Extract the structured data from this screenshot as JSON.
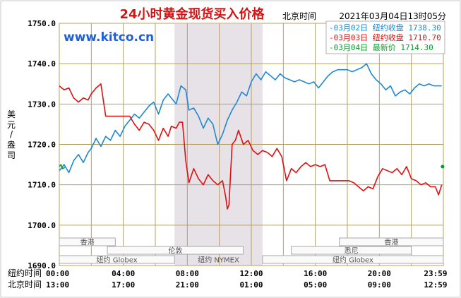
{
  "chart_data": {
    "type": "line",
    "title": "24小时黄金现货买入价格",
    "watermark": "www.kitco.cn",
    "timestamp": "2021年03月04日13时05分",
    "timestamp_prefix": "北京时间",
    "ylabel": "美元/盎司",
    "ylim": [
      1690,
      1750
    ],
    "y_ticks": [
      "1750.0",
      "1740.0",
      "1730.0",
      "1720.0",
      "1710.0",
      "1700.0",
      "1690.0"
    ],
    "x_range_hours": [
      0,
      24
    ],
    "shaded_session": {
      "label": "纽约 NYMEX",
      "start_hour": 7.2,
      "end_hour": 12.7
    },
    "x_axis_rows": [
      {
        "label": "纽约时间",
        "ticks": [
          "00:00",
          "04:00",
          "08:00",
          "12:00",
          "16:00",
          "20:00",
          "23:59"
        ]
      },
      {
        "label": "北京时间",
        "ticks": [
          "13:00",
          "17:00",
          "21:00",
          "01:00",
          "05:00",
          "09:00",
          "12:59"
        ]
      }
    ],
    "market_sessions": [
      {
        "label": "香港",
        "start_hour": 0,
        "end_hour": 3.5,
        "row": 0
      },
      {
        "label": "伦敦",
        "start_hour": 3.0,
        "end_hour": 11.5,
        "row": 1
      },
      {
        "label": "纽约 Globex",
        "start_hour": 0,
        "end_hour": 7.2,
        "row": 2
      },
      {
        "label": "纽约 Globex",
        "start_hour": 12.7,
        "end_hour": 24,
        "row": 2
      },
      {
        "label": "香港",
        "start_hour": 17.5,
        "end_hour": 24,
        "row": 0
      },
      {
        "label": "悉尼",
        "start_hour": 14.5,
        "end_hour": 22,
        "row": 1
      }
    ],
    "legend": [
      {
        "name": "03月02日",
        "desc": "纽约收盘",
        "value": "1738.30",
        "color": "#1e88d2"
      },
      {
        "name": "03月03日",
        "desc": "纽约收盘",
        "value": "1710.70",
        "color": "#e01010"
      },
      {
        "name": "03月04日",
        "desc": "最新价",
        "value": "1714.30",
        "color": "#0a9a2a"
      }
    ],
    "series": [
      {
        "name": "03月02日",
        "color": "#1e88d2",
        "x": [
          0,
          0.3,
          0.6,
          0.9,
          1.2,
          1.5,
          1.8,
          2.0,
          2.3,
          2.6,
          2.9,
          3.2,
          3.5,
          3.8,
          4.1,
          4.4,
          4.7,
          5.0,
          5.3,
          5.6,
          5.9,
          6.2,
          6.5,
          6.8,
          7.0,
          7.3,
          7.6,
          7.9,
          8.1,
          8.4,
          8.7,
          9.0,
          9.3,
          9.6,
          9.9,
          10.2,
          10.5,
          10.8,
          11.1,
          11.4,
          11.7,
          12.0,
          12.3,
          12.6,
          12.9,
          13.2,
          13.5,
          13.8,
          14.1,
          14.4,
          14.7,
          15.0,
          15.3,
          15.6,
          15.9,
          16.2,
          16.5,
          16.8,
          17.1,
          17.4,
          17.7,
          18.0,
          18.3,
          18.6,
          18.9,
          19.2,
          19.5,
          19.8,
          20.1,
          20.4,
          20.7,
          21.0,
          21.3,
          21.6,
          21.9,
          22.2,
          22.5,
          22.8,
          23.1,
          23.4,
          23.7,
          23.9
        ],
        "values": [
          1713.5,
          1715.0,
          1713.0,
          1716.0,
          1717.5,
          1715.5,
          1718.0,
          1719.0,
          1721.5,
          1719.5,
          1722.0,
          1721.0,
          1723.5,
          1722.0,
          1724.5,
          1726.0,
          1727.5,
          1726.5,
          1728.0,
          1729.5,
          1730.5,
          1727.5,
          1731.0,
          1732.5,
          1731.5,
          1730.0,
          1734.5,
          1733.5,
          1728.5,
          1729.0,
          1727.0,
          1724.0,
          1726.5,
          1725.0,
          1720.0,
          1722.5,
          1726.0,
          1728.5,
          1730.5,
          1733.0,
          1732.0,
          1735.5,
          1737.5,
          1736.0,
          1738.0,
          1737.0,
          1736.0,
          1737.5,
          1736.5,
          1736.0,
          1735.5,
          1736.0,
          1735.5,
          1735.0,
          1735.5,
          1734.0,
          1735.5,
          1737.0,
          1738.0,
          1738.5,
          1738.5,
          1738.5,
          1738.0,
          1738.5,
          1739.0,
          1740.0,
          1737.5,
          1736.0,
          1735.0,
          1733.5,
          1734.5,
          1732.0,
          1733.0,
          1733.5,
          1732.5,
          1734.0,
          1735.0,
          1734.5,
          1735.0,
          1734.5,
          1734.5,
          1734.5
        ]
      },
      {
        "name": "03月03日",
        "color": "#e01010",
        "x": [
          0,
          0.3,
          0.6,
          0.9,
          1.2,
          1.5,
          1.8,
          2.0,
          2.3,
          2.6,
          2.9,
          3.2,
          3.5,
          3.8,
          4.1,
          4.4,
          4.7,
          5.0,
          5.3,
          5.6,
          5.9,
          6.2,
          6.5,
          6.8,
          7.0,
          7.3,
          7.5,
          7.7,
          7.9,
          8.1,
          8.4,
          8.7,
          9.0,
          9.3,
          9.6,
          9.9,
          10.2,
          10.4,
          10.5,
          10.6,
          10.8,
          11.0,
          11.2,
          11.5,
          11.8,
          12.1,
          12.4,
          12.7,
          13.0,
          13.3,
          13.6,
          13.9,
          14.2,
          14.5,
          14.8,
          15.1,
          15.4,
          15.7,
          16.0,
          16.3,
          16.6,
          16.9,
          17.2,
          17.5,
          17.8,
          18.1,
          18.4,
          18.7,
          19.0,
          19.3,
          19.6,
          19.9,
          20.2,
          20.5,
          20.8,
          21.1,
          21.4,
          21.7,
          22.0,
          22.3,
          22.6,
          22.9,
          23.2,
          23.5,
          23.7,
          23.9
        ],
        "values": [
          1734.5,
          1733.5,
          1734.0,
          1731.5,
          1730.5,
          1731.5,
          1731.0,
          1732.5,
          1734.0,
          1735.0,
          1727.0,
          1727.0,
          1727.0,
          1727.0,
          1727.0,
          1727.0,
          1725.0,
          1723.5,
          1725.5,
          1725.0,
          1723.5,
          1721.0,
          1724.0,
          1722.0,
          1724.5,
          1724.0,
          1725.5,
          1725.5,
          1716.0,
          1710.5,
          1714.0,
          1711.5,
          1710.0,
          1712.5,
          1711.0,
          1710.0,
          1711.0,
          1707.0,
          1704.0,
          1705.0,
          1720.0,
          1721.0,
          1723.5,
          1720.0,
          1721.0,
          1718.5,
          1717.5,
          1718.5,
          1718.0,
          1717.0,
          1719.0,
          1717.0,
          1711.0,
          1714.0,
          1713.0,
          1714.5,
          1715.5,
          1714.5,
          1715.0,
          1714.5,
          1715.0,
          1711.0,
          1711.0,
          1711.0,
          1711.0,
          1711.0,
          1710.5,
          1709.5,
          1708.5,
          1709.5,
          1709.0,
          1712.0,
          1714.0,
          1713.5,
          1713.0,
          1714.0,
          1712.5,
          1714.5,
          1711.5,
          1711.0,
          1710.0,
          1710.5,
          1709.5,
          1709.5,
          1707.5,
          1710.0
        ]
      },
      {
        "name": "03月04日",
        "color": "#0a9a2a",
        "x": [
          0,
          0.1,
          0.2,
          0.35
        ],
        "values": [
          1714.5,
          1715.0,
          1714.0,
          1714.3
        ]
      }
    ],
    "last_point": {
      "x": 23.95,
      "value": 1714.5
    }
  }
}
